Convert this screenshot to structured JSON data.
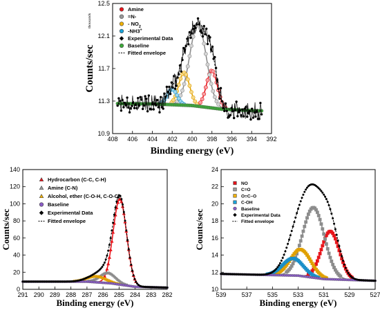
{
  "chart_data": [
    {
      "type": "line",
      "xlabel": "Binding energy (eV)",
      "ylabel": "Counts/sec",
      "ylabel_multiplier": "thousands",
      "xlim": [
        408,
        392
      ],
      "ylim": [
        10.9,
        12.5
      ],
      "xticks": [
        "408",
        "406",
        "404",
        "402",
        "400",
        "398",
        "396",
        "394",
        "392"
      ],
      "yticks": [
        "12.5",
        "12.1",
        "11.7",
        "11.3",
        "10.9"
      ],
      "legend": {
        "placement": "top-left",
        "entries": [
          {
            "label": "Amine",
            "color": "#e8141b",
            "marker": "circle"
          },
          {
            "label": "=N-",
            "color": "#9a9a9a",
            "marker": "circle"
          },
          {
            "label": "- NO",
            "sub": "2",
            "color": "#f0b000",
            "marker": "circle"
          },
          {
            "label": "-NH3",
            "sup": "+",
            "color": "#1aa3d8",
            "marker": "circle"
          },
          {
            "label": "Experimental Data",
            "color": "#000000",
            "marker": "diamond"
          },
          {
            "label": "Baseline",
            "color": "#3daa3a",
            "marker": "circle"
          },
          {
            "label": "Fitted envelope",
            "color": "#000000",
            "marker": "dash"
          }
        ]
      },
      "baseline": {
        "x": [
          408.0,
          404.0,
          400.0,
          397.0,
          393.5
        ],
        "y": [
          11.27,
          11.265,
          11.245,
          11.2,
          11.18
        ]
      },
      "peaks": [
        {
          "name": "Amine",
          "center": 398.0,
          "height": 0.46,
          "sigma": 0.55,
          "color": "#e8141b",
          "fill": "#f3a0a3"
        },
        {
          "name": "=N-",
          "center": 399.4,
          "height": 1.0,
          "sigma": 0.85,
          "color": "#8c8c8c",
          "fill": "#d4d4d4"
        },
        {
          "name": "- NO2",
          "center": 400.8,
          "height": 0.4,
          "sigma": 0.55,
          "color": "#e0a000",
          "fill": "#f6d98a"
        },
        {
          "name": "-NH3+",
          "center": 402.0,
          "height": 0.19,
          "sigma": 0.5,
          "color": "#1a8fc8",
          "fill": "#9fd7ef"
        }
      ],
      "noise_amplitude": 0.05,
      "x_range_data": [
        407.5,
        393.0
      ]
    },
    {
      "type": "line",
      "xlabel": "Binding energy (eV)",
      "ylabel": "Counts/sec",
      "xlim": [
        291,
        282
      ],
      "ylim": [
        0,
        140
      ],
      "xticks": [
        "291",
        "290",
        "289",
        "288",
        "287",
        "286",
        "285",
        "284",
        "283",
        "282"
      ],
      "yticks": [
        "140",
        "120",
        "100",
        "80",
        "60",
        "40",
        "20",
        "0"
      ],
      "legend": {
        "placement": "top-left",
        "entries": [
          {
            "label": "Hydrocarbon (C-C, C-H)",
            "color": "#e8141b",
            "marker": "triangle"
          },
          {
            "label": "Amine (C-N)",
            "color": "#9a9a9a",
            "marker": "triangle"
          },
          {
            "label": "Alcohol, ether (C-O-H, C-O-C)",
            "color": "#f0b000",
            "marker": "triangle"
          },
          {
            "label": "Baseline",
            "color": "#8a5cc7",
            "marker": "circle"
          },
          {
            "label": "Experimental Data",
            "color": "#000000",
            "marker": "diamond"
          },
          {
            "label": "Fitted envelope",
            "color": "#000000",
            "marker": "dash"
          }
        ]
      },
      "baseline": {
        "x": [
          291.0,
          287.0,
          285.5,
          284.0,
          282.0
        ],
        "y": [
          9,
          9,
          7,
          3,
          2
        ]
      },
      "peaks": [
        {
          "name": "Hydrocarbon (C-C, C-H)",
          "center": 284.95,
          "height": 100,
          "sigma": 0.42,
          "color": "#e8141b",
          "fill": "none"
        },
        {
          "name": "Amine (C-N)",
          "center": 285.7,
          "height": 12,
          "sigma": 0.5,
          "color": "#8c8c8c",
          "fill": "none"
        },
        {
          "name": "Alcohol, ether (C-O-H, C-O-C)",
          "center": 286.4,
          "height": 7,
          "sigma": 0.6,
          "color": "#e0a000",
          "fill": "none"
        }
      ],
      "noise_amplitude": 0,
      "x_range_data": [
        291.0,
        282.0
      ]
    },
    {
      "type": "line",
      "xlabel": "Binding energy (eV)",
      "ylabel": "Counts/sec",
      "xlim": [
        539,
        527
      ],
      "ylim": [
        10,
        24
      ],
      "xticks": [
        "539",
        "537",
        "535",
        "533",
        "531",
        "529",
        "527"
      ],
      "yticks": [
        "24",
        "22",
        "20",
        "18",
        "16",
        "14",
        "12",
        "10"
      ],
      "legend": {
        "placement": "top-left",
        "entries": [
          {
            "label": "NO",
            "color": "#e8141b",
            "marker": "square"
          },
          {
            "label": "C=O",
            "color": "#9a9a9a",
            "marker": "square"
          },
          {
            "label": "O=C–O",
            "color": "#f0b000",
            "marker": "square"
          },
          {
            "label": "C-OH",
            "color": "#1aa3d8",
            "marker": "square"
          },
          {
            "label": "Baseline",
            "color": "#8a5cc7",
            "marker": "circle"
          },
          {
            "label": "Experimental Data",
            "color": "#000000",
            "marker": "diamond"
          },
          {
            "label": "Fitted envelope",
            "color": "#000000",
            "marker": "dash"
          }
        ]
      },
      "baseline": {
        "x": [
          539.0,
          533.0,
          531.0,
          527.0
        ],
        "y": [
          11.8,
          11.6,
          11.2,
          11.0
        ]
      },
      "peaks": [
        {
          "name": "NO",
          "center": 530.5,
          "height": 5.6,
          "sigma": 0.7,
          "color": "#e8141b",
          "fill": "none"
        },
        {
          "name": "C=O",
          "center": 531.8,
          "height": 8.2,
          "sigma": 0.85,
          "color": "#8c8c8c",
          "fill": "none"
        },
        {
          "name": "O=C–O",
          "center": 532.8,
          "height": 3.1,
          "sigma": 0.8,
          "color": "#e0a000",
          "fill": "none"
        },
        {
          "name": "C-OH",
          "center": 533.4,
          "height": 2.0,
          "sigma": 0.8,
          "color": "#1a8fc8",
          "fill": "none"
        }
      ],
      "noise_amplitude": 0,
      "x_range_data": [
        539.0,
        527.0
      ]
    }
  ]
}
